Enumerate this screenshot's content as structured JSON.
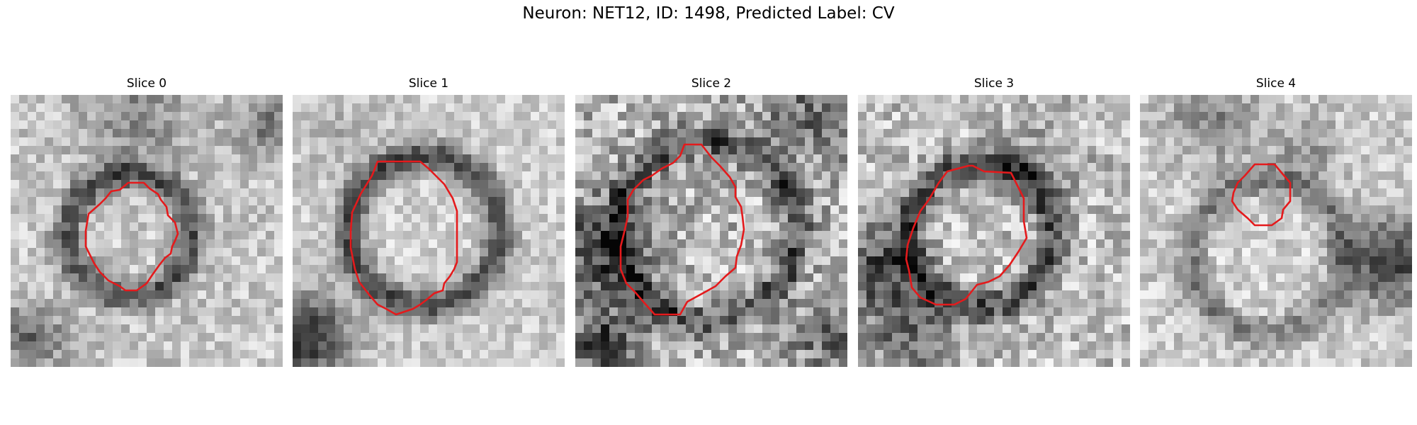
{
  "figure": {
    "title": "Neuron: NET12, ID: 1498, Predicted Label: CV"
  },
  "contour_color": "#e41a1c",
  "panels": [
    {
      "title": "Slice 0"
    },
    {
      "title": "Slice 1"
    },
    {
      "title": "Slice 2"
    },
    {
      "title": "Slice 3"
    },
    {
      "title": "Slice 4"
    }
  ]
}
